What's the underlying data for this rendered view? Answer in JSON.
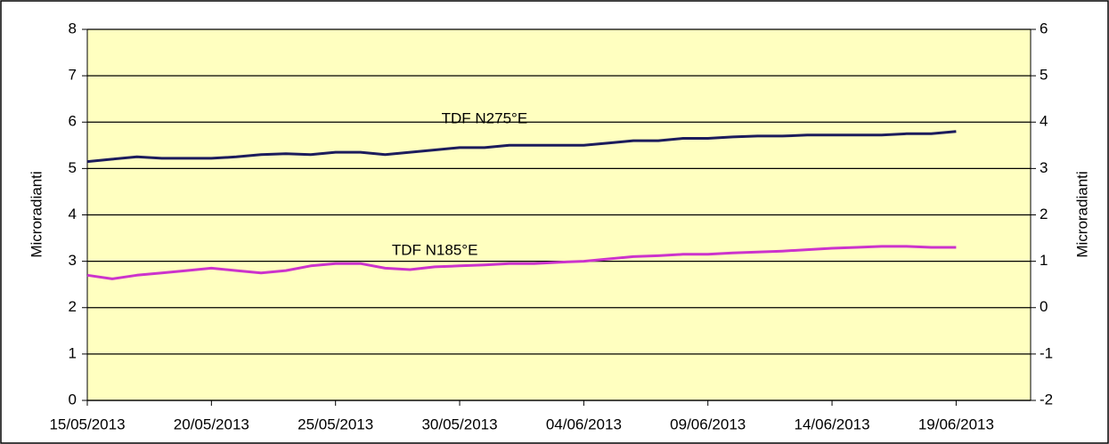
{
  "chart_data": {
    "type": "line",
    "x": [
      "2013-05-15",
      "2013-05-16",
      "2013-05-17",
      "2013-05-18",
      "2013-05-19",
      "2013-05-20",
      "2013-05-21",
      "2013-05-22",
      "2013-05-23",
      "2013-05-24",
      "2013-05-25",
      "2013-05-26",
      "2013-05-27",
      "2013-05-28",
      "2013-05-29",
      "2013-05-30",
      "2013-05-31",
      "2013-06-01",
      "2013-06-02",
      "2013-06-03",
      "2013-06-04",
      "2013-06-05",
      "2013-06-06",
      "2013-06-07",
      "2013-06-08",
      "2013-06-09",
      "2013-06-10",
      "2013-06-11",
      "2013-06-12",
      "2013-06-13",
      "2013-06-14",
      "2013-06-15",
      "2013-06-16",
      "2013-06-17",
      "2013-06-18",
      "2013-06-19"
    ],
    "series": [
      {
        "name": "TDF N275°E",
        "color": "#1c1c5c",
        "values": [
          5.15,
          5.2,
          5.25,
          5.22,
          5.22,
          5.22,
          5.25,
          5.3,
          5.32,
          5.3,
          5.35,
          5.35,
          5.3,
          5.35,
          5.4,
          5.45,
          5.45,
          5.5,
          5.5,
          5.5,
          5.5,
          5.55,
          5.6,
          5.6,
          5.65,
          5.65,
          5.68,
          5.7,
          5.7,
          5.72,
          5.72,
          5.72,
          5.72,
          5.75,
          5.75,
          5.8
        ]
      },
      {
        "name": "TDF N185°E",
        "color": "#cc33cc",
        "values": [
          2.7,
          2.62,
          2.7,
          2.75,
          2.8,
          2.85,
          2.8,
          2.75,
          2.8,
          2.9,
          2.95,
          2.95,
          2.85,
          2.82,
          2.88,
          2.9,
          2.92,
          2.95,
          2.95,
          2.98,
          3.0,
          3.05,
          3.1,
          3.12,
          3.15,
          3.15,
          3.18,
          3.2,
          3.22,
          3.25,
          3.28,
          3.3,
          3.32,
          3.32,
          3.3,
          3.3
        ]
      }
    ],
    "xlim": [
      "2013-05-15",
      "2013-06-22"
    ],
    "xticks": [
      {
        "value": "2013-05-15",
        "label": "15/05/2013"
      },
      {
        "value": "2013-05-20",
        "label": "20/05/2013"
      },
      {
        "value": "2013-05-25",
        "label": "25/05/2013"
      },
      {
        "value": "2013-05-30",
        "label": "30/05/2013"
      },
      {
        "value": "2013-06-04",
        "label": "04/06/2013"
      },
      {
        "value": "2013-06-09",
        "label": "09/06/2013"
      },
      {
        "value": "2013-06-14",
        "label": "14/06/2013"
      },
      {
        "value": "2013-06-19",
        "label": "19/06/2013"
      }
    ],
    "ylim": [
      0,
      8
    ],
    "yticks": [
      0,
      1,
      2,
      3,
      4,
      5,
      6,
      7,
      8
    ],
    "y2lim": [
      -2,
      6
    ],
    "y2ticks": [
      -2,
      -1,
      0,
      1,
      2,
      3,
      4,
      5,
      6
    ],
    "ylabel": "Microradianti",
    "y2label": "Microradianti",
    "grid": true
  }
}
